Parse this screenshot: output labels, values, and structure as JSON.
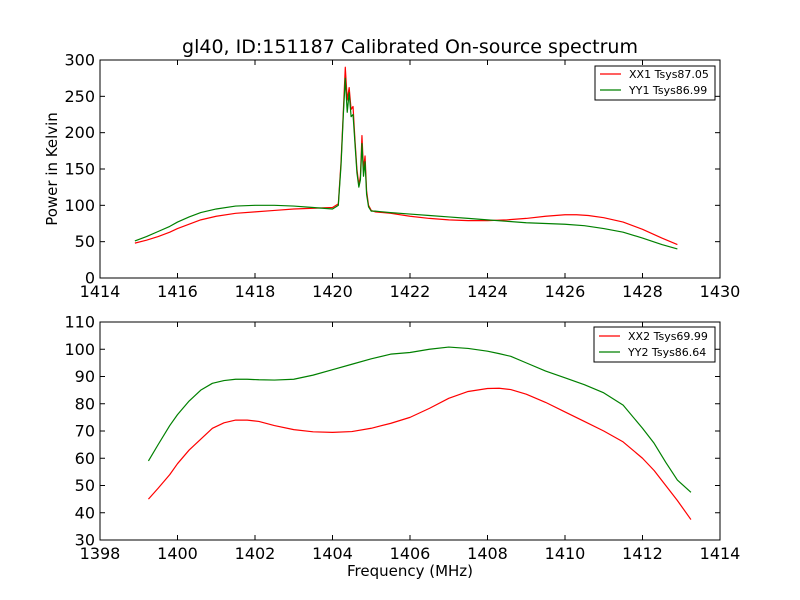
{
  "chart_data": [
    {
      "type": "line",
      "title": "gl40, ID:151187 Calibrated On-source spectrum",
      "xlabel": "",
      "ylabel": "Power in Kelvin",
      "xlim": [
        1414,
        1430
      ],
      "ylim": [
        0,
        300
      ],
      "xticks": [
        1414,
        1416,
        1418,
        1420,
        1422,
        1424,
        1426,
        1428,
        1430
      ],
      "yticks": [
        0,
        50,
        100,
        150,
        200,
        250,
        300
      ],
      "legend_position": "top-right",
      "series": [
        {
          "name": "XX1 Tsys87.05",
          "color": "#ff0000",
          "x": [
            1414.9,
            1415.2,
            1415.5,
            1415.8,
            1416.0,
            1416.3,
            1416.6,
            1417.0,
            1417.5,
            1418.0,
            1418.5,
            1419.0,
            1419.5,
            1420.0,
            1420.15,
            1420.22,
            1420.28,
            1420.33,
            1420.38,
            1420.43,
            1420.48,
            1420.53,
            1420.58,
            1420.63,
            1420.68,
            1420.72,
            1420.76,
            1420.8,
            1420.84,
            1420.88,
            1420.93,
            1421.0,
            1421.1,
            1421.5,
            1422.0,
            1422.5,
            1423.0,
            1423.5,
            1424.0,
            1424.5,
            1425.0,
            1425.5,
            1426.0,
            1426.3,
            1426.6,
            1427.0,
            1427.5,
            1428.0,
            1428.5,
            1428.9
          ],
          "y": [
            48,
            52,
            57,
            63,
            68,
            74,
            80,
            85,
            89,
            91,
            93,
            95,
            96,
            97,
            102,
            160,
            230,
            290,
            245,
            262,
            232,
            236,
            190,
            150,
            128,
            140,
            196,
            150,
            168,
            120,
            100,
            93,
            91,
            89,
            85,
            82,
            80,
            79,
            79,
            80,
            82,
            85,
            87,
            87,
            86,
            83,
            77,
            67,
            55,
            46
          ]
        },
        {
          "name": "YY1 Tsys86.99",
          "color": "#008000",
          "x": [
            1414.9,
            1415.2,
            1415.5,
            1415.8,
            1416.0,
            1416.3,
            1416.6,
            1417.0,
            1417.5,
            1418.0,
            1418.5,
            1419.0,
            1419.5,
            1420.0,
            1420.15,
            1420.22,
            1420.28,
            1420.33,
            1420.38,
            1420.43,
            1420.48,
            1420.53,
            1420.58,
            1420.63,
            1420.68,
            1420.72,
            1420.76,
            1420.8,
            1420.84,
            1420.88,
            1420.93,
            1421.0,
            1421.1,
            1421.5,
            1422.0,
            1422.5,
            1423.0,
            1423.5,
            1424.0,
            1424.5,
            1425.0,
            1425.5,
            1426.0,
            1426.5,
            1427.0,
            1427.5,
            1428.0,
            1428.5,
            1428.9
          ],
          "y": [
            51,
            57,
            64,
            71,
            77,
            84,
            90,
            95,
            99,
            100,
            100,
            99,
            97,
            95,
            100,
            155,
            225,
            275,
            228,
            255,
            222,
            225,
            185,
            145,
            125,
            135,
            185,
            140,
            160,
            115,
            98,
            92,
            92,
            90,
            88,
            86,
            84,
            82,
            80,
            78,
            76,
            75,
            74,
            72,
            68,
            63,
            55,
            46,
            40
          ]
        }
      ]
    },
    {
      "type": "line",
      "title": "",
      "xlabel": "Frequency (MHz)",
      "ylabel": "",
      "xlim": [
        1398,
        1414
      ],
      "ylim": [
        30,
        110
      ],
      "xticks": [
        1398,
        1400,
        1402,
        1404,
        1406,
        1408,
        1410,
        1412,
        1414
      ],
      "yticks": [
        30,
        40,
        50,
        60,
        70,
        80,
        90,
        100,
        110
      ],
      "legend_position": "top-right",
      "series": [
        {
          "name": "XX2 Tsys69.99",
          "color": "#ff0000",
          "x": [
            1399.25,
            1399.5,
            1399.8,
            1400.0,
            1400.3,
            1400.6,
            1400.9,
            1401.2,
            1401.5,
            1401.8,
            1402.1,
            1402.5,
            1403.0,
            1403.5,
            1404.0,
            1404.5,
            1405.0,
            1405.5,
            1406.0,
            1406.5,
            1407.0,
            1407.5,
            1408.0,
            1408.3,
            1408.6,
            1409.0,
            1409.5,
            1410.0,
            1410.5,
            1411.0,
            1411.5,
            1412.0,
            1412.3,
            1412.6,
            1412.9,
            1413.25
          ],
          "y": [
            45,
            49,
            54,
            58,
            63,
            67,
            71,
            73,
            74,
            74,
            73.5,
            72,
            70.5,
            69.7,
            69.5,
            69.8,
            71,
            72.8,
            75,
            78.3,
            82,
            84.5,
            85.6,
            85.7,
            85.2,
            83.5,
            80.5,
            77,
            73.5,
            70,
            66,
            60,
            55.5,
            50,
            44.5,
            37.5
          ]
        },
        {
          "name": "YY2 Tsys86.64",
          "color": "#008000",
          "x": [
            1399.25,
            1399.5,
            1399.8,
            1400.0,
            1400.3,
            1400.6,
            1400.9,
            1401.2,
            1401.5,
            1401.8,
            1402.1,
            1402.5,
            1403.0,
            1403.5,
            1404.0,
            1404.5,
            1405.0,
            1405.5,
            1406.0,
            1406.5,
            1407.0,
            1407.5,
            1408.0,
            1408.3,
            1408.6,
            1409.0,
            1409.5,
            1410.0,
            1410.5,
            1411.0,
            1411.5,
            1412.0,
            1412.3,
            1412.6,
            1412.9,
            1413.25
          ],
          "y": [
            59,
            65,
            72,
            76,
            81,
            85,
            87.5,
            88.5,
            89,
            89,
            88.8,
            88.7,
            89,
            90.5,
            92.5,
            94.5,
            96.5,
            98.2,
            98.8,
            100,
            100.8,
            100.3,
            99.3,
            98.4,
            97.4,
            95,
            92,
            89.5,
            87,
            84,
            79.5,
            71,
            65.5,
            58.5,
            52,
            47.5
          ]
        }
      ]
    }
  ]
}
